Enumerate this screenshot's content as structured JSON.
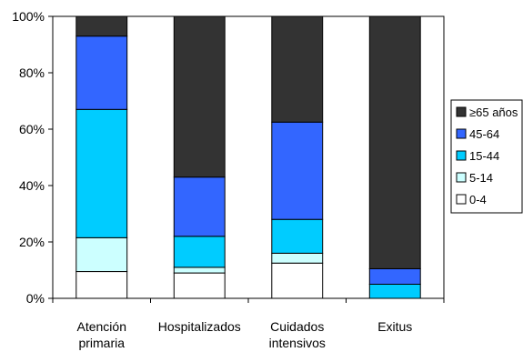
{
  "chart_data": {
    "type": "bar",
    "stacked": true,
    "title": "",
    "xlabel": "",
    "ylabel": "",
    "ylim": [
      0,
      100
    ],
    "y_ticks": [
      "0%",
      "20%",
      "40%",
      "60%",
      "80%",
      "100%"
    ],
    "y_tick_values": [
      0,
      20,
      40,
      60,
      80,
      100
    ],
    "grid": false,
    "legend_position": "right",
    "categories": [
      [
        "Atención",
        "primaria"
      ],
      [
        "Hospitalizados"
      ],
      [
        "Cuidados",
        "intensivos"
      ],
      [
        "Exitus"
      ]
    ],
    "series": [
      {
        "name": "0-4",
        "color": "#ffffff",
        "values": [
          9.5,
          9,
          12.5,
          0
        ]
      },
      {
        "name": "5-14",
        "color": "#ccffff",
        "values": [
          12,
          2,
          3.5,
          0
        ]
      },
      {
        "name": "15-44",
        "color": "#00ccff",
        "values": [
          45.5,
          11,
          12,
          5
        ]
      },
      {
        "name": "45-64",
        "color": "#3366ff",
        "values": [
          26,
          21,
          34.5,
          5.5
        ]
      },
      {
        "name": "≥65 años",
        "color": "#333333",
        "values": [
          7,
          57,
          37.5,
          89.5
        ]
      }
    ],
    "legend_order": [
      "≥65 años",
      "45-64",
      "15-44",
      "5-14",
      "0-4"
    ]
  }
}
